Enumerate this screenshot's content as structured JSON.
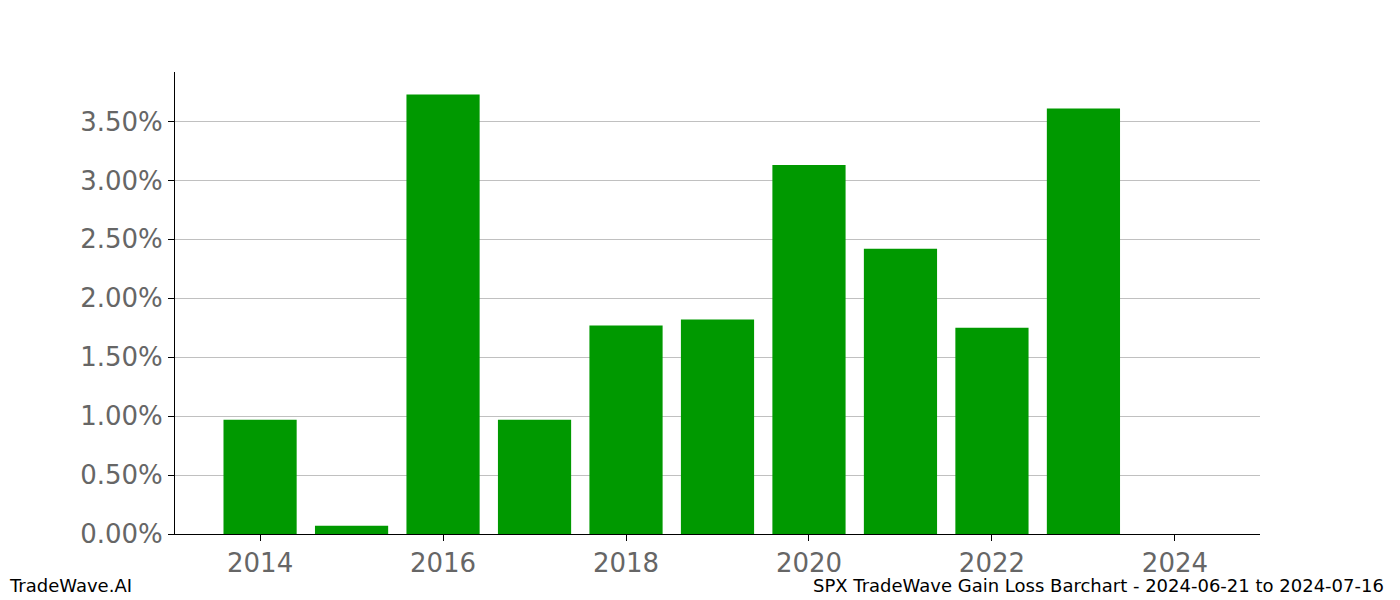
{
  "chart_data": {
    "type": "bar",
    "x": [
      2014,
      2015,
      2016,
      2017,
      2018,
      2019,
      2020,
      2021,
      2022,
      2023
    ],
    "values": [
      0.97,
      0.07,
      3.73,
      0.97,
      1.77,
      1.82,
      3.13,
      2.42,
      1.75,
      3.61
    ],
    "color": "#009900",
    "xlim": [
      2013.07,
      2024.93
    ],
    "xticks": [
      2014,
      2016,
      2018,
      2020,
      2022,
      2024
    ],
    "ylim": [
      0,
      3.92
    ],
    "yticks": [
      {
        "value": 0,
        "label": "0.00%"
      },
      {
        "value": 0.5,
        "label": "0.50%"
      },
      {
        "value": 1,
        "label": "1.00%"
      },
      {
        "value": 1.5,
        "label": "1.50%"
      },
      {
        "value": 2,
        "label": "2.00%"
      },
      {
        "value": 2.5,
        "label": "2.50%"
      },
      {
        "value": 3,
        "label": "3.00%"
      },
      {
        "value": 3.5,
        "label": "3.50%"
      }
    ],
    "grid": true,
    "annotations": [
      "TradeWave.AI",
      "SPX TradeWave Gain Loss Barchart - 2024-06-21 to 2024-07-16"
    ]
  }
}
